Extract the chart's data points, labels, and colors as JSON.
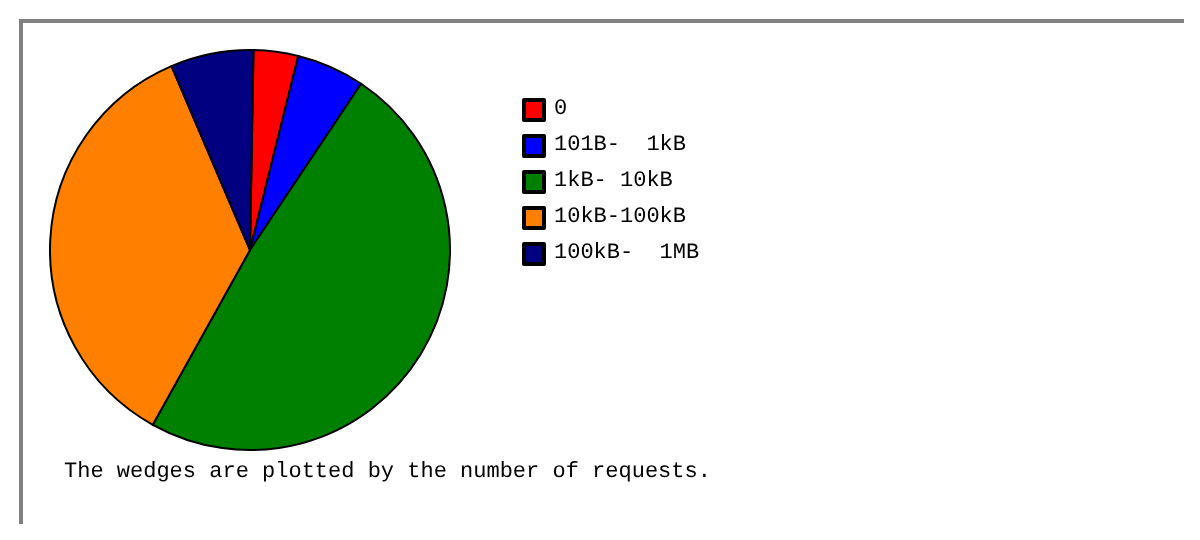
{
  "chart_data": {
    "type": "pie",
    "categories": [
      "0",
      "101B-  1kB",
      "1kB- 10kB",
      "10kB-100kB",
      "100kB-  1MB"
    ],
    "values": [
      3.6,
      5.5,
      48.7,
      35.5,
      6.7
    ],
    "colors": [
      "#ff0000",
      "#0000ff",
      "#008000",
      "#ff8000",
      "#000080"
    ],
    "legend": "right",
    "annotations": [
      "The wedges are plotted by the number of requests."
    ]
  }
}
